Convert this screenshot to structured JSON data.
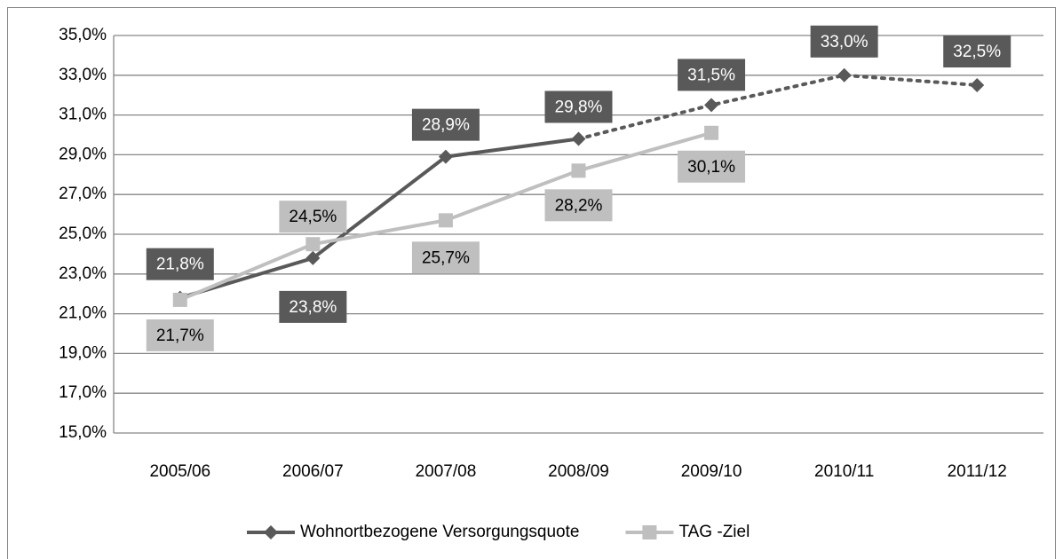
{
  "chart_data": {
    "type": "line",
    "categories": [
      "2005/06",
      "2006/07",
      "2007/08",
      "2008/09",
      "2009/10",
      "2010/11",
      "2011/12"
    ],
    "series": [
      {
        "name": "Wohnortbezogene Versorgungsquote",
        "color": "#595959",
        "marker": "diamond",
        "dotted_from": "2008/09",
        "values": [
          21.8,
          23.8,
          28.9,
          29.8,
          31.5,
          33.0,
          32.5
        ],
        "value_labels": [
          "21,8%",
          "23,8%",
          "28,9%",
          "29,8%",
          "31,5%",
          "33,0%",
          "32,5%"
        ]
      },
      {
        "name": "TAG -Ziel",
        "color": "#bfbfbf",
        "marker": "square",
        "values": [
          21.7,
          24.5,
          25.7,
          28.2,
          30.1,
          null,
          null
        ],
        "value_labels": [
          "21,7%",
          "24,5%",
          "25,7%",
          "28,2%",
          "30,1%",
          null,
          null
        ]
      }
    ],
    "ylim": [
      15,
      35
    ],
    "yticks": [
      {
        "value": 15,
        "label": "15,0%"
      },
      {
        "value": 17,
        "label": "17,0%"
      },
      {
        "value": 19,
        "label": "19,0%"
      },
      {
        "value": 21,
        "label": "21,0%"
      },
      {
        "value": 23,
        "label": "23,0%"
      },
      {
        "value": 25,
        "label": "25,0%"
      },
      {
        "value": 27,
        "label": "27,0%"
      },
      {
        "value": 29,
        "label": "29,0%"
      },
      {
        "value": 31,
        "label": "31,0%"
      },
      {
        "value": 33,
        "label": "33,0%"
      },
      {
        "value": 35,
        "label": "35,0%"
      }
    ],
    "grid": true,
    "legend": "bottom"
  }
}
